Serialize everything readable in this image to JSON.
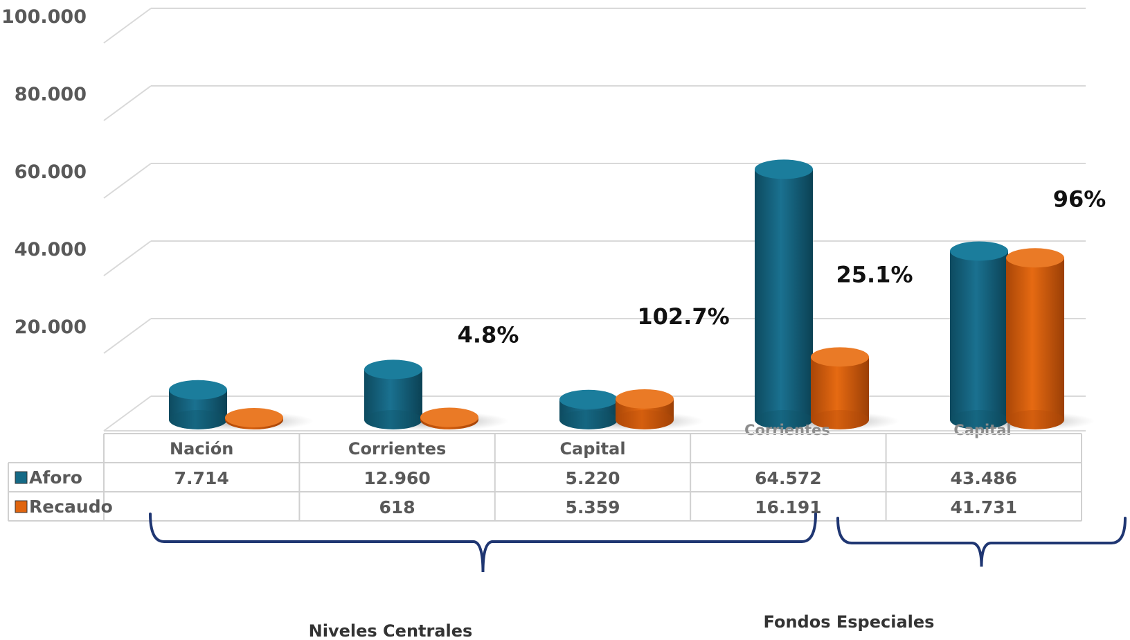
{
  "colors": {
    "aforo": "#156a86",
    "recaudo": "#e0650f",
    "brace": "#1f3672",
    "grid": "#d9d9d9"
  },
  "chart_data": {
    "type": "bar",
    "categories": [
      "Nación",
      "Corrientes",
      "Capital",
      "",
      ""
    ],
    "inplot_labels": [
      "",
      "",
      "",
      "Corrientes",
      "Capital"
    ],
    "series": [
      {
        "name": "Aforo",
        "values": [
          7714,
          12960,
          5220,
          64572,
          43486
        ],
        "labels": [
          "7.714",
          "12.960",
          "5.220",
          "64.572",
          "43.486"
        ]
      },
      {
        "name": "Recaudo",
        "values": [
          0,
          618,
          5359,
          16191,
          41731
        ],
        "labels": [
          "",
          "618",
          "5.359",
          "16.191",
          "41.731"
        ]
      }
    ],
    "percent_labels": [
      "",
      "4.8%",
      "102.7%",
      "25.1%",
      "96%"
    ],
    "yticks": [
      "20.000",
      "40.000",
      "60.000",
      "80.000",
      "100.000"
    ],
    "ylim": [
      0,
      100000
    ],
    "groups": [
      "Niveles  Centrales",
      "Fondos Especiales"
    ],
    "grid": true,
    "legend": "data-table"
  }
}
